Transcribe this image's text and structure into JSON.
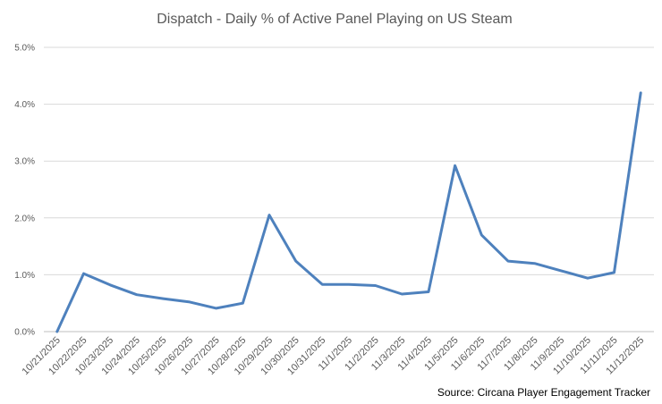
{
  "chart_data": {
    "type": "line",
    "title": "Dispatch - Daily % of Active Panel Playing on US Steam",
    "xlabel": "",
    "ylabel": "",
    "categories": [
      "10/21/2025",
      "10/22/2025",
      "10/23/2025",
      "10/24/2025",
      "10/25/2025",
      "10/26/2025",
      "10/27/2025",
      "10/28/2025",
      "10/29/2025",
      "10/30/2025",
      "10/31/2025",
      "11/1/2025",
      "11/2/2025",
      "11/3/2025",
      "11/4/2025",
      "11/5/2025",
      "11/6/2025",
      "11/7/2025",
      "11/8/2025",
      "11/9/2025",
      "11/10/2025",
      "11/11/2025",
      "11/12/2025"
    ],
    "series": [
      {
        "values": [
          0.0,
          1.02,
          0.82,
          0.65,
          0.58,
          0.52,
          0.41,
          0.5,
          2.05,
          1.24,
          0.83,
          0.83,
          0.81,
          0.66,
          0.7,
          2.92,
          1.7,
          1.24,
          1.2,
          1.07,
          0.94,
          1.04,
          4.2
        ],
        "color": "#4e81bd"
      }
    ],
    "ylim": [
      0,
      5
    ],
    "yticks": [
      "0.0%",
      "1.0%",
      "2.0%",
      "3.0%",
      "4.0%",
      "5.0%"
    ],
    "grid": true,
    "legend": "none",
    "source": "Source: Circana Player Engagement Tracker"
  }
}
